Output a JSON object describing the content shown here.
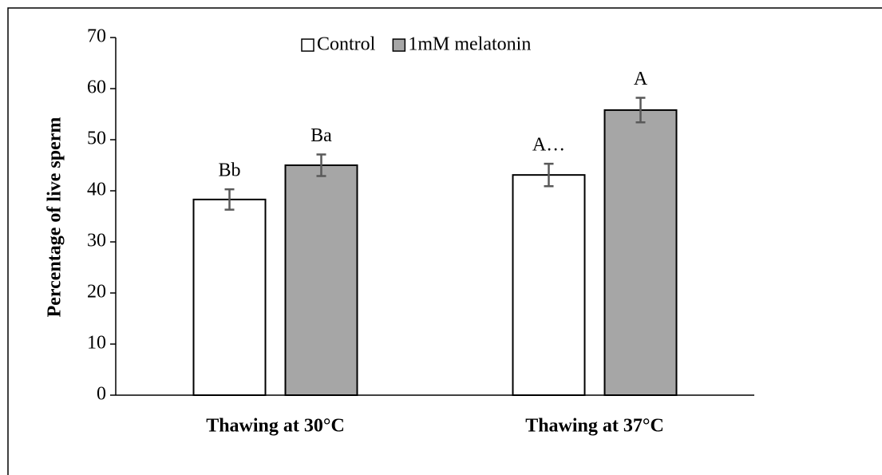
{
  "chart_data": {
    "type": "bar",
    "y_label": "Percentage of live sperm",
    "categories": [
      "Thawing at 30°C",
      "Thawing at 37°C"
    ],
    "series": [
      {
        "name": "Control",
        "color": "#ffffff",
        "values": [
          38.3,
          43.1
        ],
        "errors": [
          2.0,
          2.2
        ],
        "annotations": [
          "Bb",
          "A…"
        ]
      },
      {
        "name": "1mM melatonin",
        "color": "#a6a6a6",
        "values": [
          45.0,
          55.8
        ],
        "errors": [
          2.1,
          2.4
        ],
        "annotations": [
          "Ba",
          "A"
        ]
      }
    ],
    "ylim": [
      0,
      70
    ],
    "yticks": [
      0,
      10,
      20,
      30,
      40,
      50,
      60,
      70
    ],
    "grid": false,
    "legend": "top"
  }
}
